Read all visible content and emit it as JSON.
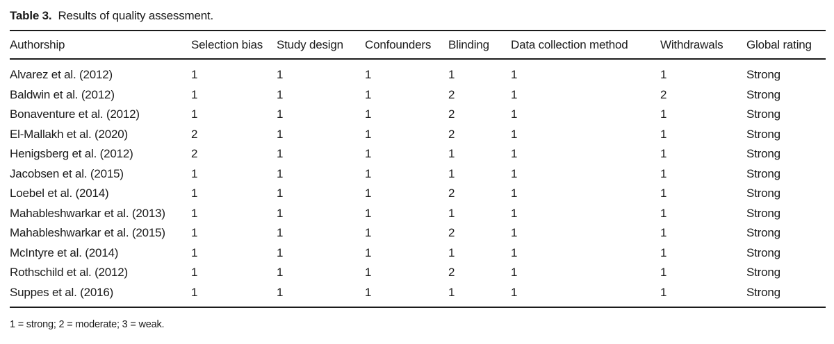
{
  "caption": {
    "label": "Table 3.",
    "text": "Results of quality assessment."
  },
  "table": {
    "columns": [
      "Authorship",
      "Selection bias",
      "Study design",
      "Confounders",
      "Blinding",
      "Data collection method",
      "Withdrawals",
      "Global rating"
    ],
    "rows": [
      {
        "cells": [
          "Alvarez et al. (2012)",
          "1",
          "1",
          "1",
          "1",
          "1",
          "1",
          "Strong"
        ]
      },
      {
        "cells": [
          "Baldwin et al. (2012)",
          "1",
          "1",
          "1",
          "2",
          "1",
          "2",
          "Strong"
        ]
      },
      {
        "cells": [
          "Bonaventure et al. (2012)",
          "1",
          "1",
          "1",
          "2",
          "1",
          "1",
          "Strong"
        ]
      },
      {
        "cells": [
          "El-Mallakh et al. (2020)",
          "2",
          "1",
          "1",
          "2",
          "1",
          "1",
          "Strong"
        ]
      },
      {
        "cells": [
          "Henigsberg et al. (2012)",
          "2",
          "1",
          "1",
          "1",
          "1",
          "1",
          "Strong"
        ]
      },
      {
        "cells": [
          "Jacobsen et al. (2015)",
          "1",
          "1",
          "1",
          "1",
          "1",
          "1",
          "Strong"
        ]
      },
      {
        "cells": [
          "Loebel et al. (2014)",
          "1",
          "1",
          "1",
          "2",
          "1",
          "1",
          "Strong"
        ]
      },
      {
        "cells": [
          "Mahableshwarkar et al. (2013)",
          "1",
          "1",
          "1",
          "1",
          "1",
          "1",
          "Strong"
        ]
      },
      {
        "cells": [
          "Mahableshwarkar et al. (2015)",
          "1",
          "1",
          "1",
          "2",
          "1",
          "1",
          "Strong"
        ]
      },
      {
        "cells": [
          "McIntyre et al. (2014)",
          "1",
          "1",
          "1",
          "1",
          "1",
          "1",
          "Strong"
        ]
      },
      {
        "cells": [
          "Rothschild et al. (2012)",
          "1",
          "1",
          "1",
          "2",
          "1",
          "1",
          "Strong"
        ]
      },
      {
        "cells": [
          "Suppes et al. (2016)",
          "1",
          "1",
          "1",
          "1",
          "1",
          "1",
          "Strong"
        ]
      }
    ]
  },
  "footnote": "1 = strong; 2 = moderate; 3 = weak.",
  "colors": {
    "text": "#1b1b1b",
    "rule": "#1b1b1b",
    "background": "#ffffff"
  }
}
